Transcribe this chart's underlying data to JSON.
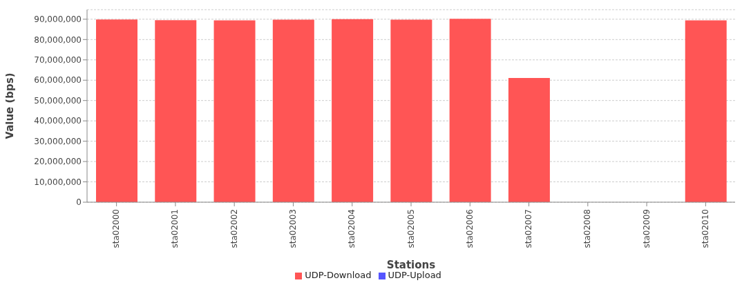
{
  "chart_data": {
    "type": "bar",
    "xlabel": "Stations",
    "ylabel": "Value (bps)",
    "categories": [
      "sta02000",
      "sta02001",
      "sta02002",
      "sta02003",
      "sta02004",
      "sta02005",
      "sta02006",
      "sta02007",
      "sta02008",
      "sta02009",
      "sta02010"
    ],
    "series": [
      {
        "name": "UDP-Download",
        "color": "#ff5555",
        "values": [
          89900000,
          89500000,
          89400000,
          89800000,
          90000000,
          89800000,
          90200000,
          61100000,
          0,
          0,
          89400000
        ]
      },
      {
        "name": "UDP-Upload",
        "color": "#5555ff",
        "values": [
          0,
          0,
          0,
          0,
          0,
          0,
          0,
          0,
          0,
          0,
          0
        ]
      }
    ],
    "ylim": [
      0,
      94700000
    ],
    "yticks": [
      0,
      {
        "value": 10000000,
        "label": "10,000,000"
      },
      {
        "value": 20000000,
        "label": "20,000,000"
      },
      {
        "value": 30000000,
        "label": "30,000,000"
      },
      {
        "value": 40000000,
        "label": "40,000,000"
      },
      {
        "value": 50000000,
        "label": "50,000,000"
      },
      {
        "value": 60000000,
        "label": "60,000,000"
      },
      {
        "value": 70000000,
        "label": "70,000,000"
      },
      {
        "value": 80000000,
        "label": "80,000,000"
      },
      {
        "value": 90000000,
        "label": "90,000,000"
      }
    ],
    "grid": "y",
    "legend": "bottom"
  }
}
